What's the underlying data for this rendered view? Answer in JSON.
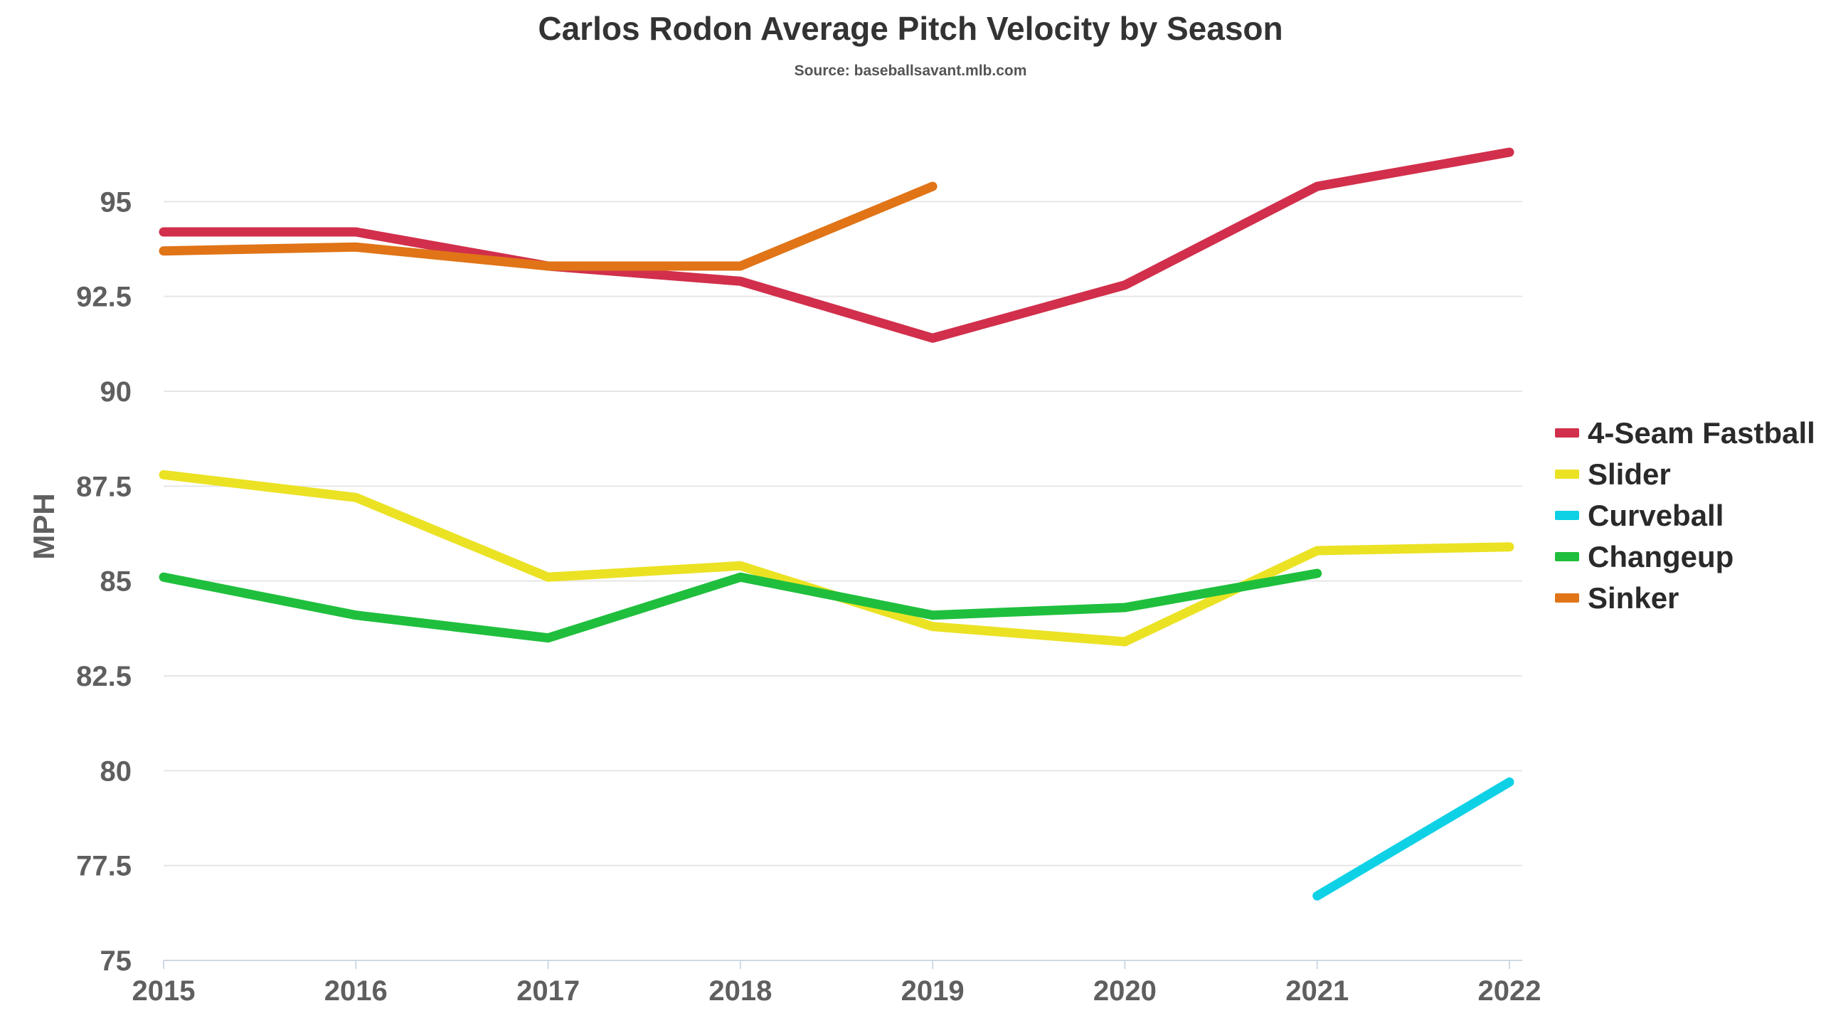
{
  "chart_data": {
    "type": "line",
    "title": "Carlos Rodon Average Pitch Velocity by Season",
    "subtitle": "Source: baseballsavant.mlb.com",
    "xlabel": "",
    "ylabel": "MPH",
    "x": [
      "2015",
      "2016",
      "2017",
      "2018",
      "2019",
      "2020",
      "2021",
      "2022"
    ],
    "ylim": [
      75,
      97.5
    ],
    "yticks": [
      75,
      77.5,
      80,
      82.5,
      85,
      87.5,
      90,
      92.5,
      95
    ],
    "ytick_labels": [
      "75",
      "77.5",
      "80",
      "82.5",
      "85",
      "87.5",
      "90",
      "92.5",
      "95"
    ],
    "grid": true,
    "legend_position": "right",
    "series": [
      {
        "name": "4-Seam Fastball",
        "color": "#d12f4b",
        "values": [
          94.2,
          94.2,
          93.3,
          92.9,
          91.4,
          92.8,
          95.4,
          96.3
        ]
      },
      {
        "name": "Slider",
        "color": "#ebe224",
        "values": [
          87.8,
          87.2,
          85.1,
          85.4,
          83.8,
          83.4,
          85.8,
          85.9
        ]
      },
      {
        "name": "Curveball",
        "color": "#0fd1e6",
        "values": [
          null,
          null,
          null,
          null,
          null,
          null,
          76.7,
          79.7
        ]
      },
      {
        "name": "Changeup",
        "color": "#1fbf3d",
        "values": [
          85.1,
          84.1,
          83.5,
          85.1,
          84.1,
          84.3,
          85.2,
          null
        ]
      },
      {
        "name": "Sinker",
        "color": "#e07417",
        "values": [
          93.7,
          93.8,
          93.3,
          93.3,
          95.4,
          null,
          null,
          null
        ]
      }
    ]
  }
}
